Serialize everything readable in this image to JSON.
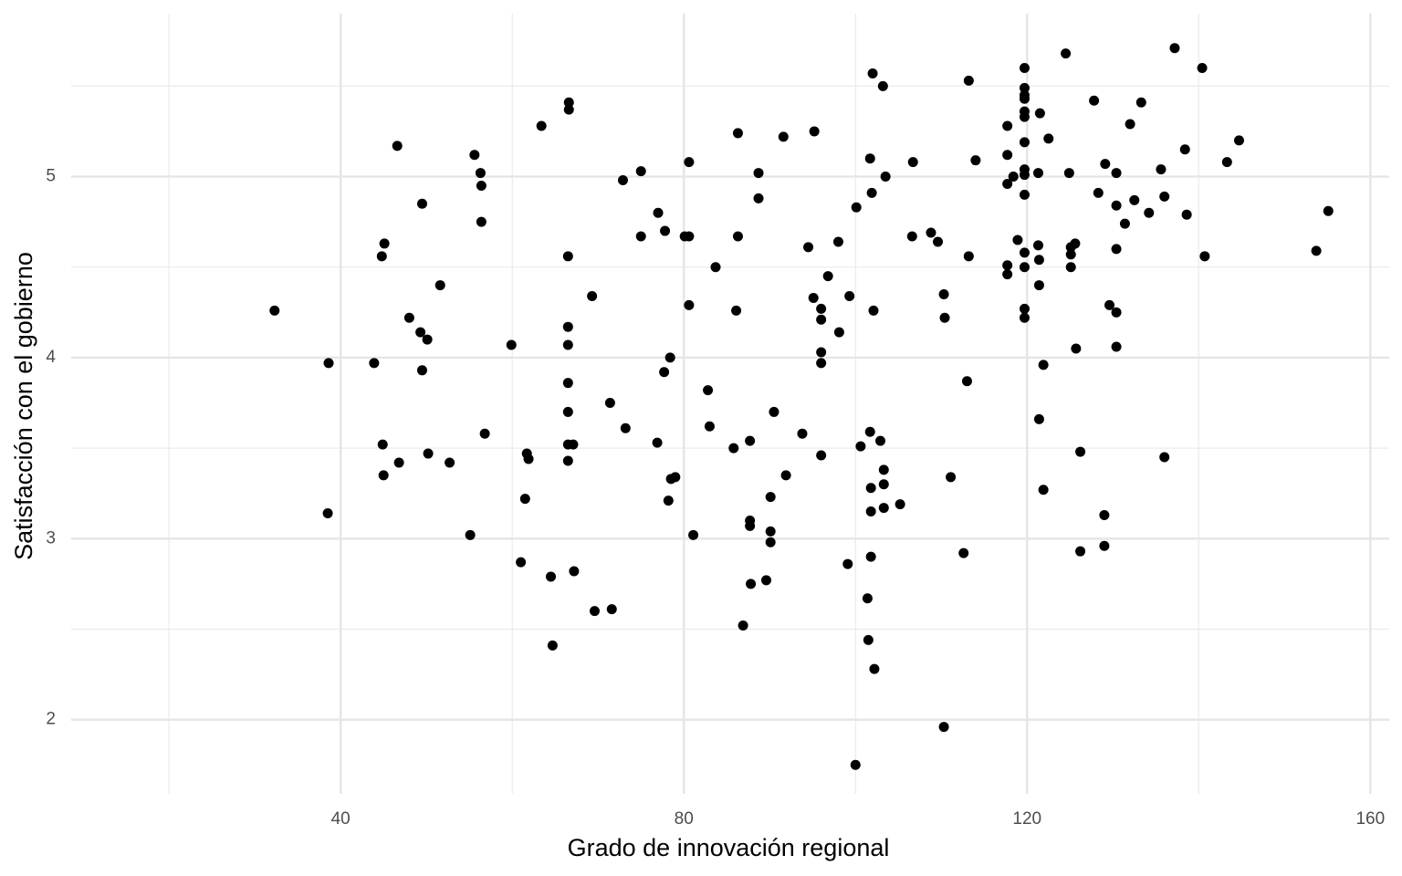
{
  "chart_data": {
    "type": "scatter",
    "x_label": "Grado de innovación regional",
    "y_label": "Satisfacción con el gobierno",
    "color": "#000000",
    "grid": true,
    "xlim": [
      8.6,
      162.2
    ],
    "xticks": [
      40,
      80,
      120,
      160
    ],
    "ylim": [
      1.59,
      5.9
    ],
    "yticks": [
      2,
      3,
      4,
      5
    ],
    "x": [
      32.3,
      38.6,
      38.5,
      43.9,
      44.8,
      45.1,
      44.9,
      45.0,
      46.6,
      46.8,
      48.0,
      49.3,
      49.5,
      49.5,
      50.1,
      50.2,
      51.6,
      52.7,
      55.1,
      55.6,
      56.3,
      56.4,
      56.4,
      56.8,
      59.9,
      61.0,
      61.5,
      61.7,
      61.9,
      63.4,
      64.5,
      64.7,
      66.5,
      66.5,
      66.5,
      66.5,
      66.5,
      66.5,
      66.5,
      66.6,
      66.6,
      67.1,
      67.2,
      69.3,
      69.6,
      71.4,
      71.6,
      72.9,
      73.2,
      75.0,
      75.0,
      76.9,
      77.0,
      77.7,
      77.8,
      78.2,
      78.4,
      78.5,
      79.0,
      80.1,
      80.6,
      80.6,
      80.6,
      81.1,
      82.8,
      83.0,
      83.7,
      85.8,
      86.1,
      86.3,
      86.3,
      86.9,
      87.7,
      87.7,
      87.7,
      87.8,
      88.7,
      88.7,
      89.6,
      90.1,
      90.1,
      90.1,
      90.5,
      91.6,
      91.9,
      93.8,
      94.5,
      95.2,
      95.1,
      96.0,
      96.0,
      96.0,
      96.0,
      96.0,
      96.8,
      98.0,
      98.1,
      99.1,
      99.3,
      100.0,
      100.1,
      100.6,
      101.4,
      101.5,
      101.7,
      101.7,
      101.8,
      101.8,
      101.8,
      101.9,
      102.0,
      102.1,
      102.2,
      102.9,
      103.2,
      103.3,
      103.3,
      103.3,
      103.5,
      105.2,
      106.7,
      106.6,
      108.8,
      109.6,
      110.3,
      110.4,
      110.3,
      111.1,
      112.6,
      113.0,
      113.2,
      113.2,
      114.0,
      117.7,
      117.7,
      117.7,
      117.7,
      117.7,
      118.4,
      118.9,
      119.7,
      119.7,
      119.7,
      119.7,
      119.7,
      119.7,
      119.7,
      119.7,
      119.7,
      119.7,
      119.7,
      119.7,
      119.7,
      119.7,
      121.3,
      121.3,
      121.4,
      121.4,
      121.4,
      121.5,
      121.9,
      121.9,
      122.5,
      124.5,
      124.9,
      125.1,
      125.1,
      125.1,
      125.6,
      125.7,
      126.2,
      126.2,
      127.8,
      128.3,
      129.1,
      129.0,
      129.0,
      129.6,
      130.4,
      130.4,
      130.4,
      130.4,
      130.4,
      131.4,
      132.0,
      132.5,
      133.3,
      134.2,
      135.6,
      136.0,
      136.0,
      137.2,
      138.4,
      138.6,
      140.4,
      140.7,
      143.3,
      144.7,
      153.7,
      155.1
    ],
    "values": [
      4.26,
      3.97,
      3.14,
      3.97,
      4.56,
      4.63,
      3.52,
      3.35,
      5.17,
      3.42,
      4.22,
      4.14,
      4.85,
      3.93,
      4.1,
      3.47,
      4.4,
      3.42,
      3.02,
      5.12,
      5.02,
      4.95,
      4.75,
      3.58,
      4.07,
      2.87,
      3.22,
      3.47,
      3.44,
      5.28,
      2.79,
      2.41,
      4.56,
      4.17,
      4.07,
      3.86,
      3.7,
      3.52,
      3.43,
      5.41,
      5.37,
      3.52,
      2.82,
      4.34,
      2.6,
      3.75,
      2.61,
      4.98,
      3.61,
      5.03,
      4.67,
      3.53,
      4.8,
      3.92,
      4.7,
      3.21,
      4.0,
      3.33,
      3.34,
      4.67,
      5.08,
      4.67,
      4.29,
      3.02,
      3.82,
      3.62,
      4.5,
      3.5,
      4.26,
      5.24,
      4.67,
      2.52,
      3.54,
      3.1,
      3.07,
      2.75,
      5.02,
      4.88,
      2.77,
      3.23,
      3.04,
      2.98,
      3.7,
      5.22,
      3.35,
      3.58,
      4.61,
      5.25,
      4.33,
      4.27,
      4.21,
      4.03,
      3.97,
      3.46,
      4.45,
      4.64,
      4.14,
      2.86,
      4.34,
      1.75,
      4.83,
      3.51,
      2.67,
      2.44,
      3.59,
      5.1,
      3.28,
      3.15,
      2.9,
      4.91,
      5.57,
      4.26,
      2.28,
      3.54,
      5.5,
      3.38,
      3.3,
      3.17,
      5.0,
      3.19,
      5.08,
      4.67,
      4.69,
      4.64,
      4.35,
      4.22,
      1.96,
      3.34,
      2.92,
      3.87,
      5.53,
      4.56,
      5.09,
      5.28,
      5.12,
      4.96,
      4.51,
      4.46,
      5.0,
      4.65,
      5.6,
      5.49,
      5.45,
      5.43,
      5.36,
      5.33,
      5.19,
      5.04,
      5.01,
      4.9,
      4.58,
      4.5,
      4.27,
      4.22,
      5.02,
      4.62,
      4.54,
      4.4,
      3.66,
      5.35,
      3.96,
      3.27,
      5.21,
      5.68,
      5.02,
      4.61,
      4.57,
      4.5,
      4.63,
      4.05,
      3.48,
      2.93,
      5.42,
      4.91,
      5.07,
      3.13,
      2.96,
      4.29,
      5.02,
      4.84,
      4.6,
      4.25,
      4.06,
      4.74,
      5.29,
      4.87,
      5.41,
      4.8,
      5.04,
      4.89,
      3.45,
      5.71,
      5.15,
      4.79,
      5.6,
      4.56,
      5.08,
      5.2,
      4.59,
      4.81
    ]
  }
}
